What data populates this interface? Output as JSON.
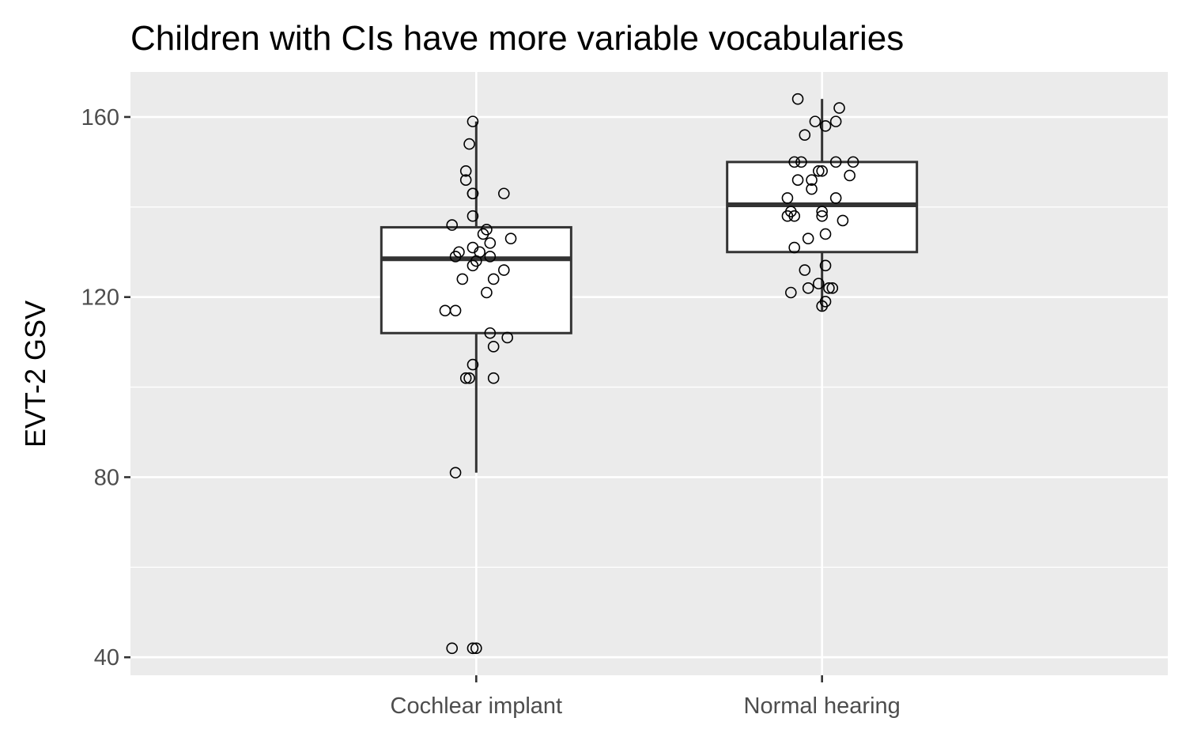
{
  "chart_data": {
    "type": "boxplot",
    "title": "Children with CIs have more variable vocabularies",
    "xlabel": "",
    "ylabel": "EVT-2 GSV",
    "categories": [
      "Cochlear implant",
      "Normal hearing"
    ],
    "ylim": [
      36,
      170
    ],
    "y_ticks": [
      40,
      80,
      120,
      160
    ],
    "y_tick_labels": [
      "40",
      "80",
      "120",
      "160"
    ],
    "grid": true,
    "colors": {
      "panel": "#ebebeb",
      "grid": "#ffffff",
      "box_line": "#333333",
      "box_fill": "#ffffff",
      "point_stroke": "#000000",
      "tick_label": "#4d4d4d",
      "tick_mark": "#333333"
    },
    "series": [
      {
        "category": "Cochlear implant",
        "box": {
          "lower_whisker": 81,
          "q1": 112,
          "median": 128.5,
          "q3": 135.5,
          "upper_whisker": 159
        },
        "points": [
          {
            "x": -0.01,
            "y": 159
          },
          {
            "x": -0.02,
            "y": 154
          },
          {
            "x": -0.03,
            "y": 148
          },
          {
            "x": -0.03,
            "y": 146
          },
          {
            "x": -0.01,
            "y": 143
          },
          {
            "x": -0.01,
            "y": 143
          },
          {
            "x": 0.08,
            "y": 143
          },
          {
            "x": -0.01,
            "y": 138
          },
          {
            "x": -0.07,
            "y": 136
          },
          {
            "x": 0.03,
            "y": 135
          },
          {
            "x": 0.02,
            "y": 134
          },
          {
            "x": 0.1,
            "y": 133
          },
          {
            "x": 0.04,
            "y": 132
          },
          {
            "x": -0.01,
            "y": 131
          },
          {
            "x": -0.05,
            "y": 130
          },
          {
            "x": 0.01,
            "y": 130
          },
          {
            "x": -0.06,
            "y": 129
          },
          {
            "x": 0.04,
            "y": 129
          },
          {
            "x": 0.0,
            "y": 128
          },
          {
            "x": -0.01,
            "y": 127
          },
          {
            "x": 0.08,
            "y": 126
          },
          {
            "x": -0.04,
            "y": 124
          },
          {
            "x": 0.05,
            "y": 124
          },
          {
            "x": 0.03,
            "y": 121
          },
          {
            "x": -0.09,
            "y": 117
          },
          {
            "x": -0.06,
            "y": 117
          },
          {
            "x": 0.04,
            "y": 112
          },
          {
            "x": 0.09,
            "y": 111
          },
          {
            "x": 0.05,
            "y": 109
          },
          {
            "x": -0.01,
            "y": 105
          },
          {
            "x": -0.03,
            "y": 102
          },
          {
            "x": -0.02,
            "y": 102
          },
          {
            "x": 0.05,
            "y": 102
          },
          {
            "x": -0.06,
            "y": 81
          },
          {
            "x": -0.07,
            "y": 42
          },
          {
            "x": -0.01,
            "y": 42
          },
          {
            "x": 0.0,
            "y": 42
          }
        ]
      },
      {
        "category": "Normal hearing",
        "box": {
          "lower_whisker": 117,
          "q1": 130,
          "median": 140.5,
          "q3": 150,
          "upper_whisker": 164
        },
        "points": [
          {
            "x": -0.07,
            "y": 164
          },
          {
            "x": 0.05,
            "y": 162
          },
          {
            "x": 0.04,
            "y": 159
          },
          {
            "x": -0.02,
            "y": 159
          },
          {
            "x": 0.01,
            "y": 158
          },
          {
            "x": -0.05,
            "y": 156
          },
          {
            "x": -0.06,
            "y": 150
          },
          {
            "x": -0.08,
            "y": 150
          },
          {
            "x": 0.09,
            "y": 150
          },
          {
            "x": 0.04,
            "y": 150
          },
          {
            "x": 0.0,
            "y": 148
          },
          {
            "x": -0.01,
            "y": 148
          },
          {
            "x": 0.08,
            "y": 147
          },
          {
            "x": -0.03,
            "y": 146
          },
          {
            "x": -0.07,
            "y": 146
          },
          {
            "x": -0.03,
            "y": 144
          },
          {
            "x": -0.1,
            "y": 142
          },
          {
            "x": 0.04,
            "y": 142
          },
          {
            "x": 0.0,
            "y": 139
          },
          {
            "x": -0.09,
            "y": 139
          },
          {
            "x": -0.08,
            "y": 138
          },
          {
            "x": -0.1,
            "y": 138
          },
          {
            "x": 0.0,
            "y": 138
          },
          {
            "x": 0.06,
            "y": 137
          },
          {
            "x": 0.01,
            "y": 134
          },
          {
            "x": -0.04,
            "y": 133
          },
          {
            "x": -0.08,
            "y": 131
          },
          {
            "x": 0.01,
            "y": 127
          },
          {
            "x": -0.05,
            "y": 126
          },
          {
            "x": -0.01,
            "y": 123
          },
          {
            "x": -0.04,
            "y": 122
          },
          {
            "x": 0.03,
            "y": 122
          },
          {
            "x": 0.02,
            "y": 122
          },
          {
            "x": -0.09,
            "y": 121
          },
          {
            "x": 0.01,
            "y": 119
          },
          {
            "x": 0.0,
            "y": 118
          }
        ]
      }
    ]
  }
}
